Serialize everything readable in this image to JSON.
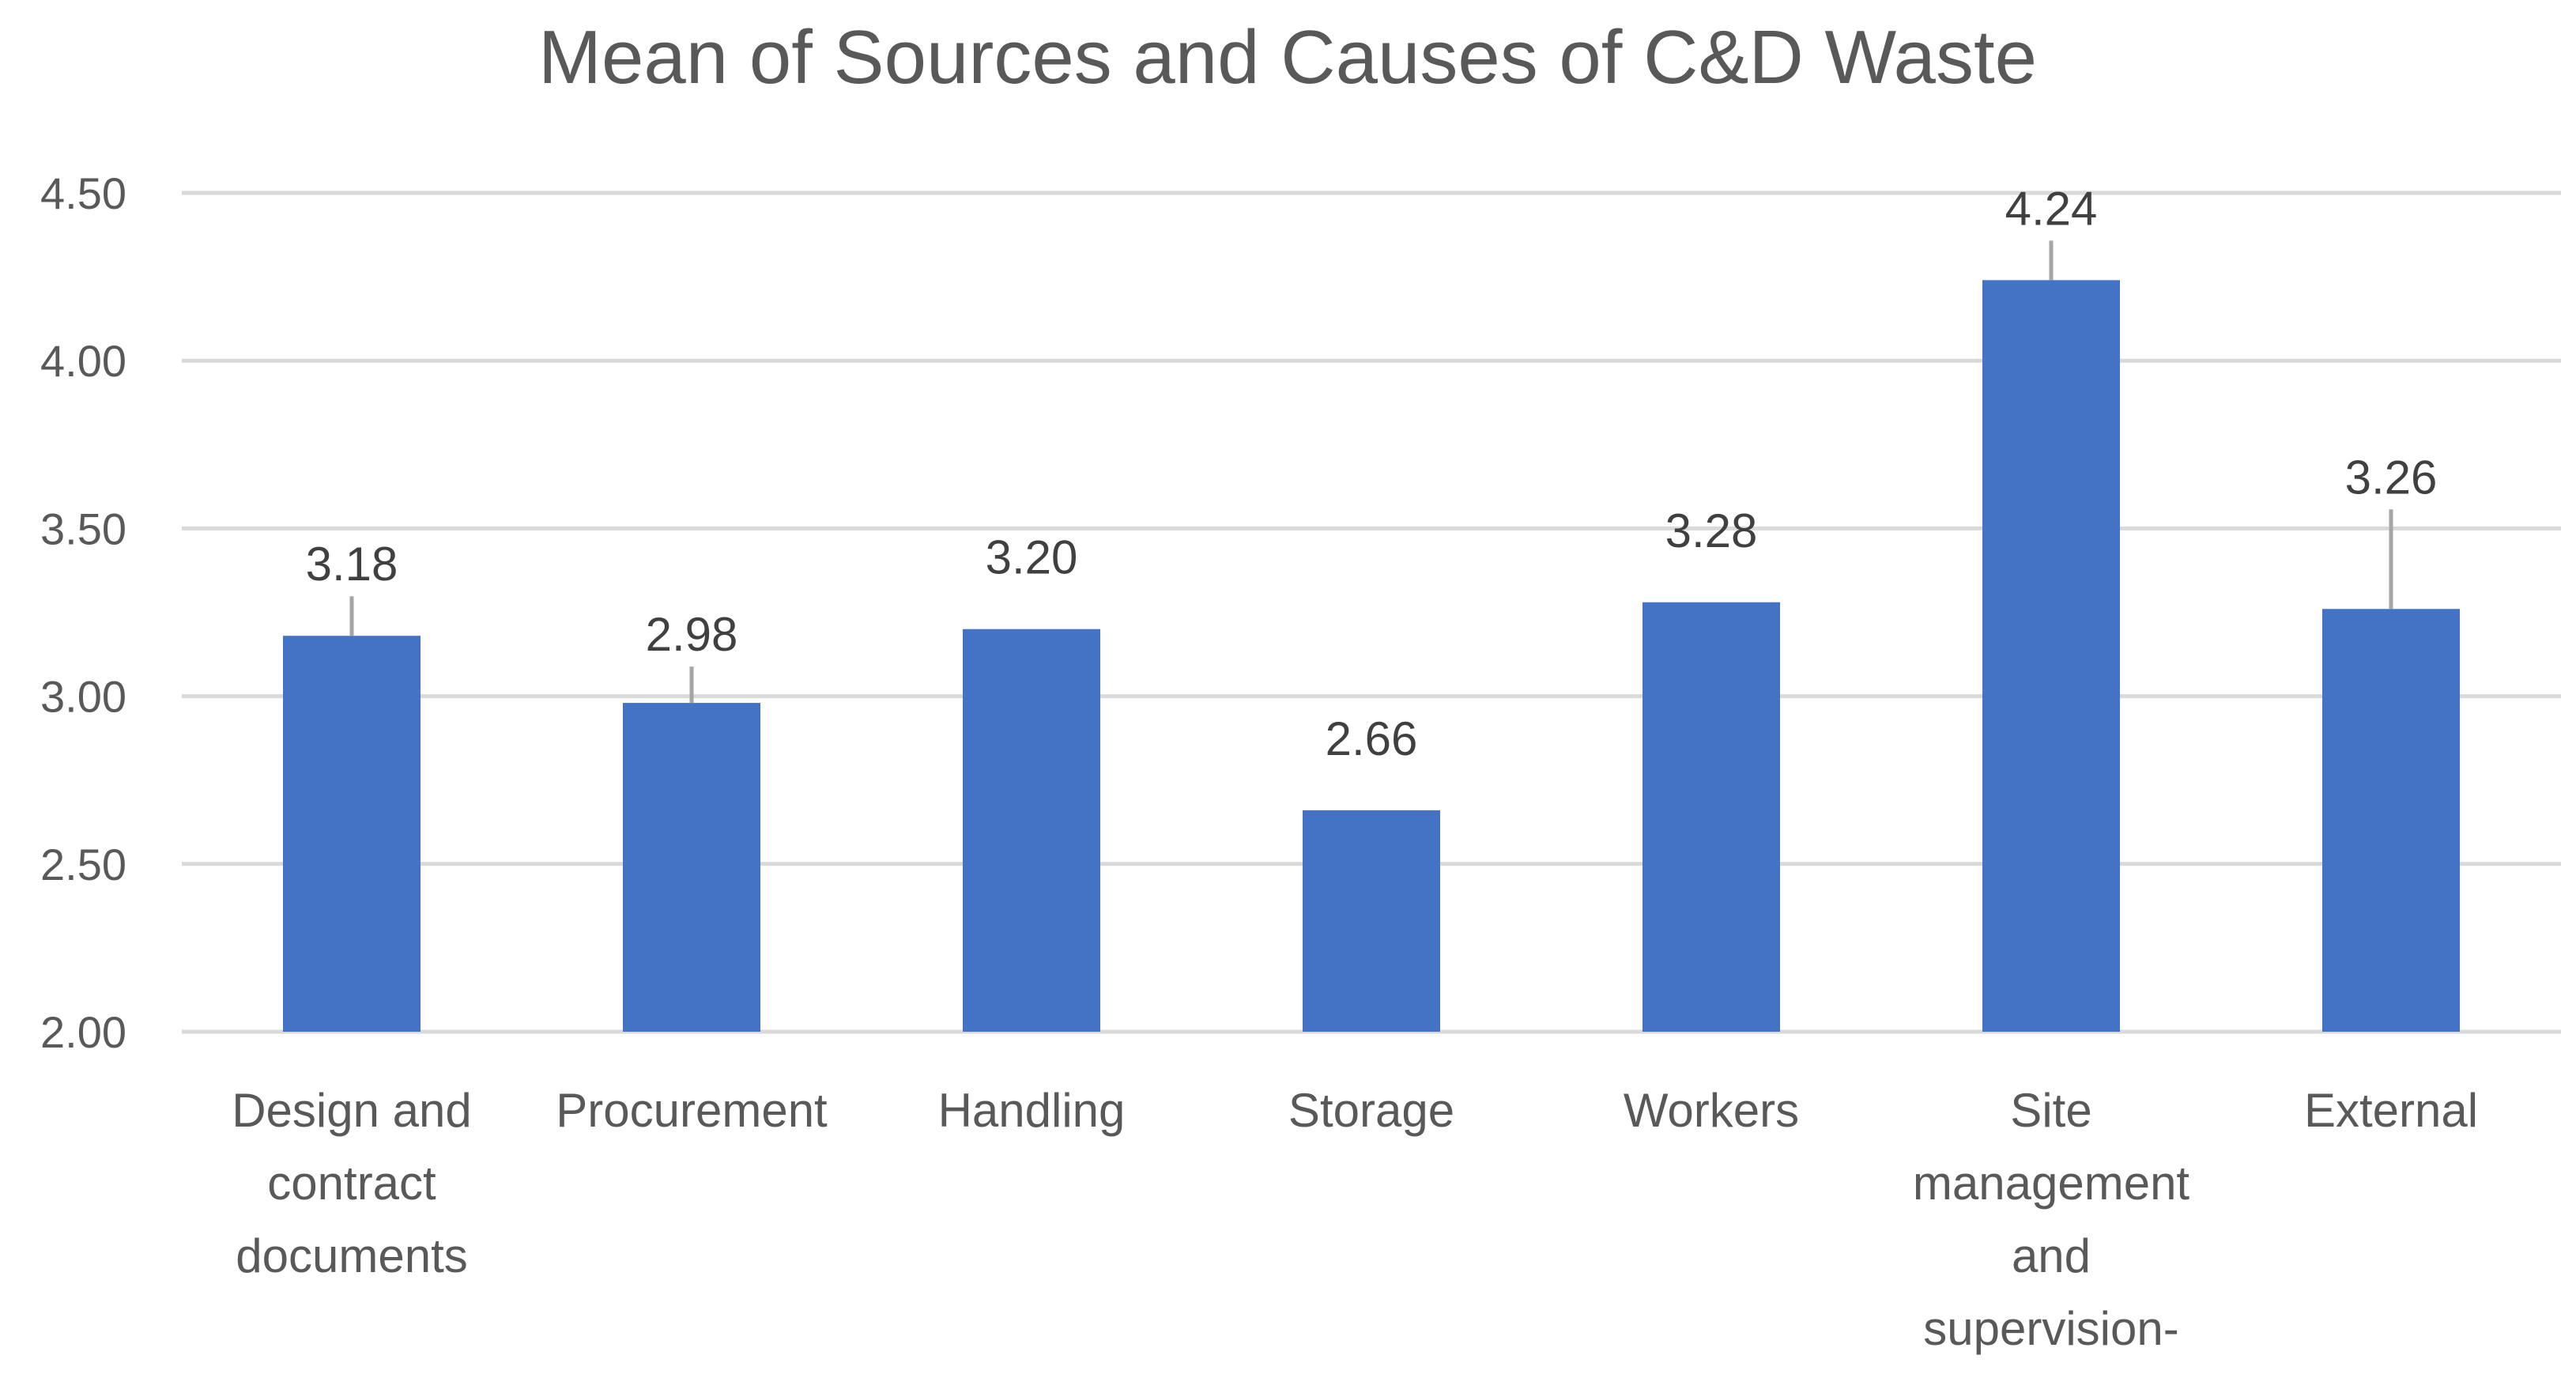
{
  "chart_data": {
    "type": "bar",
    "title": "Mean of Sources and Causes of C&D Waste",
    "xlabel": "",
    "ylabel": "",
    "ylim": [
      2.0,
      4.5
    ],
    "yticks": [
      "2.00",
      "2.50",
      "3.00",
      "3.50",
      "4.00",
      "4.50"
    ],
    "yticks_values": [
      2.0,
      2.5,
      3.0,
      3.5,
      4.0,
      4.5
    ],
    "grid": true,
    "bar_color": "#4472C4",
    "categories": [
      [
        "Design and",
        "contract",
        "documents"
      ],
      [
        "Procurement"
      ],
      [
        "Handling"
      ],
      [
        "Storage"
      ],
      [
        "Workers"
      ],
      [
        "Site",
        "management",
        "and",
        "supervision-"
      ],
      [
        "External"
      ]
    ],
    "values": [
      3.18,
      2.98,
      3.2,
      2.66,
      3.28,
      4.24,
      3.26
    ],
    "data_labels": [
      "3.18",
      "2.98",
      "3.20",
      "2.66",
      "3.28",
      "4.24",
      "3.26"
    ]
  }
}
